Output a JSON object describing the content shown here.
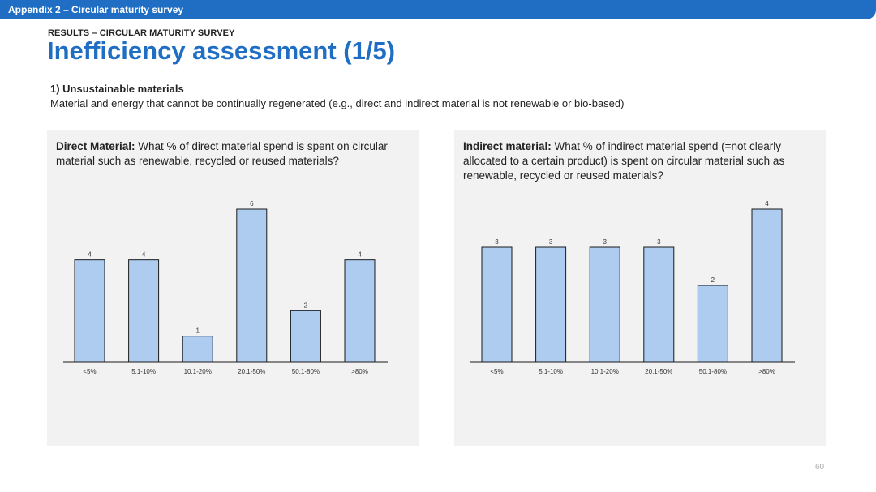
{
  "header": {
    "section_label": "Appendix 2 – Circular maturity survey"
  },
  "kicker": "RESULTS – CIRCULAR MATURITY SURVEY",
  "title": "Inefficiency assessment (1/5)",
  "section": {
    "title": "1) Unsustainable materials",
    "description": "Material and energy that cannot be continually regenerated (e.g., direct and indirect material is not renewable or bio-based)"
  },
  "colors": {
    "accent": "#1f6ec4",
    "bar_fill": "#aecbf0",
    "panel_bg": "#f2f2f2"
  },
  "chart_data": [
    {
      "type": "bar",
      "question_bold": "Direct Material:",
      "question_text": " What % of direct material spend is spent on circular material such as renewable, recycled or reused materials?",
      "categories": [
        "<5%",
        "5.1-10%",
        "10.1-20%",
        "20.1-50%",
        "50.1-80%",
        ">80%"
      ],
      "values": [
        4,
        4,
        1,
        6,
        2,
        4
      ],
      "ylim": [
        0,
        6
      ],
      "grid": false
    },
    {
      "type": "bar",
      "question_bold": "Indirect material:",
      "question_text": " What % of indirect material spend (=not clearly allocated to a certain product) is spent on circular material such as renewable, recycled or reused materials?",
      "categories": [
        "<5%",
        "5.1-10%",
        "10.1-20%",
        "20.1-50%",
        "50.1-80%",
        ">80%"
      ],
      "values": [
        3,
        3,
        3,
        3,
        2,
        4
      ],
      "ylim": [
        0,
        4
      ],
      "grid": false
    }
  ],
  "page_number": "60"
}
